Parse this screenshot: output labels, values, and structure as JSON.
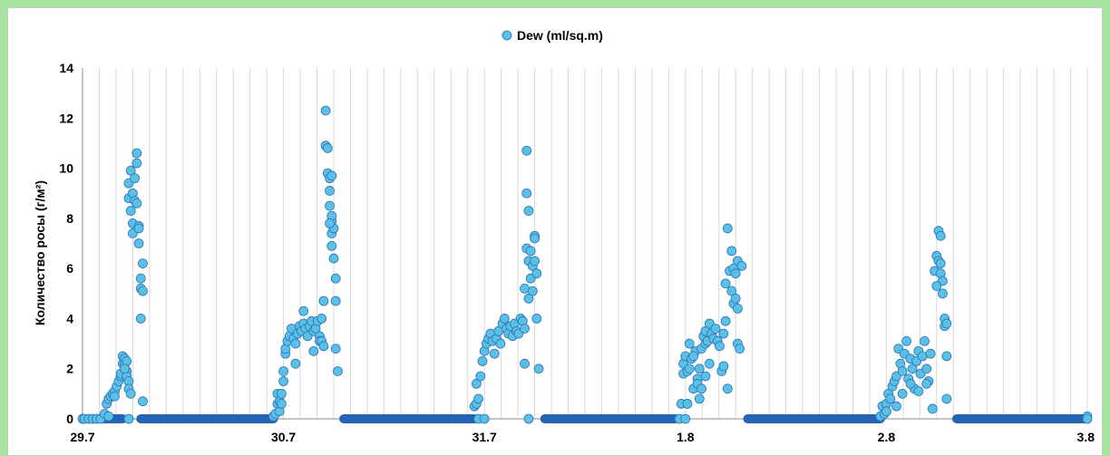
{
  "chart_data": {
    "type": "scatter",
    "title": "",
    "xlabel": "",
    "ylabel": "Количество росы (г/м²)",
    "ylim": [
      0,
      14
    ],
    "yticks": [
      "0",
      "2",
      "4",
      "6",
      "8",
      "10",
      "12",
      "14"
    ],
    "xlim": [
      0,
      5
    ],
    "xticks": [
      {
        "value": 0,
        "label": "29.7"
      },
      {
        "value": 1,
        "label": "30.7"
      },
      {
        "value": 2,
        "label": "31.7"
      },
      {
        "value": 3,
        "label": "1.8"
      },
      {
        "value": 4,
        "label": "2.8"
      },
      {
        "value": 5,
        "label": "3.8"
      }
    ],
    "grid": {
      "vertical_minor": true,
      "minor_per_day": 12
    },
    "legend": {
      "position": "top-center"
    },
    "colors": {
      "marker_fill": "#5bc0e6",
      "marker_stroke": "#2c72b8",
      "zero_band": "#2563b5"
    },
    "series": [
      {
        "name": "Dew (ml/sq.m)",
        "zero_segments": [
          [
            0.0,
            0.2
          ],
          [
            0.29,
            0.95
          ],
          [
            1.3,
            1.95
          ],
          [
            2.3,
            2.95
          ],
          [
            3.31,
            3.97
          ],
          [
            4.35,
            5.0
          ]
        ],
        "points": [
          [
            0.0,
            0
          ],
          [
            0.01,
            0
          ],
          [
            0.03,
            0
          ],
          [
            0.05,
            0
          ],
          [
            0.07,
            0
          ],
          [
            0.09,
            0
          ],
          [
            0.11,
            0.2
          ],
          [
            0.12,
            0.6
          ],
          [
            0.13,
            0.8
          ],
          [
            0.13,
            0.1
          ],
          [
            0.14,
            0.9
          ],
          [
            0.15,
            1.0
          ],
          [
            0.16,
            1.1
          ],
          [
            0.16,
            0.9
          ],
          [
            0.17,
            1.3
          ],
          [
            0.18,
            1.5
          ],
          [
            0.19,
            1.7
          ],
          [
            0.19,
            1.8
          ],
          [
            0.2,
            2.2
          ],
          [
            0.2,
            2.5
          ],
          [
            0.21,
            2.4
          ],
          [
            0.21,
            2.2
          ],
          [
            0.22,
            1.9
          ],
          [
            0.22,
            1.7
          ],
          [
            0.23,
            1.5
          ],
          [
            0.23,
            1.2
          ],
          [
            0.24,
            1.0
          ],
          [
            0.22,
            2.3
          ],
          [
            0.21,
            2.0
          ],
          [
            0.23,
            0
          ],
          [
            0.23,
            8.8
          ],
          [
            0.23,
            9.4
          ],
          [
            0.24,
            9.9
          ],
          [
            0.24,
            8.3
          ],
          [
            0.25,
            9.0
          ],
          [
            0.25,
            7.8
          ],
          [
            0.25,
            7.4
          ],
          [
            0.26,
            8.7
          ],
          [
            0.26,
            9.6
          ],
          [
            0.27,
            10.2
          ],
          [
            0.27,
            10.6
          ],
          [
            0.27,
            8.6
          ],
          [
            0.28,
            7.7
          ],
          [
            0.28,
            7.6
          ],
          [
            0.28,
            7.0
          ],
          [
            0.29,
            5.6
          ],
          [
            0.29,
            5.2
          ],
          [
            0.3,
            5.1
          ],
          [
            0.29,
            4.0
          ],
          [
            0.3,
            6.2
          ],
          [
            0.3,
            0.7
          ],
          [
            0.95,
            0.1
          ],
          [
            0.96,
            0.2
          ],
          [
            0.97,
            0.6
          ],
          [
            0.97,
            1.0
          ],
          [
            0.98,
            0.3
          ],
          [
            0.98,
            0.7
          ],
          [
            0.99,
            1.0
          ],
          [
            0.99,
            0.6
          ],
          [
            1.0,
            1.5
          ],
          [
            1.0,
            1.9
          ],
          [
            1.01,
            2.6
          ],
          [
            1.01,
            2.8
          ],
          [
            1.02,
            3.1
          ],
          [
            1.03,
            3.3
          ],
          [
            1.04,
            3.6
          ],
          [
            1.05,
            3.2
          ],
          [
            1.06,
            3.0
          ],
          [
            1.06,
            2.2
          ],
          [
            1.07,
            3.4
          ],
          [
            1.08,
            3.7
          ],
          [
            1.09,
            3.5
          ],
          [
            1.1,
            3.8
          ],
          [
            1.1,
            4.3
          ],
          [
            1.11,
            3.6
          ],
          [
            1.12,
            3.3
          ],
          [
            1.13,
            3.7
          ],
          [
            1.14,
            3.9
          ],
          [
            1.15,
            3.5
          ],
          [
            1.15,
            2.7
          ],
          [
            1.16,
            3.6
          ],
          [
            1.17,
            3.9
          ],
          [
            1.18,
            3.3
          ],
          [
            1.18,
            3.1
          ],
          [
            1.19,
            4.0
          ],
          [
            1.19,
            3.1
          ],
          [
            1.2,
            2.9
          ],
          [
            1.2,
            4.7
          ],
          [
            1.21,
            12.3
          ],
          [
            1.21,
            10.9
          ],
          [
            1.22,
            10.8
          ],
          [
            1.22,
            9.8
          ],
          [
            1.23,
            9.6
          ],
          [
            1.23,
            9.1
          ],
          [
            1.23,
            8.5
          ],
          [
            1.24,
            7.9
          ],
          [
            1.24,
            8.1
          ],
          [
            1.24,
            7.4
          ],
          [
            1.24,
            6.9
          ],
          [
            1.25,
            7.6
          ],
          [
            1.25,
            6.4
          ],
          [
            1.26,
            5.6
          ],
          [
            1.26,
            4.7
          ],
          [
            1.26,
            2.8
          ],
          [
            1.27,
            1.9
          ],
          [
            1.24,
            9.7
          ],
          [
            1.23,
            7.8
          ],
          [
            1.95,
            0.5
          ],
          [
            1.96,
            0.6
          ],
          [
            1.96,
            1.4
          ],
          [
            1.97,
            0.8
          ],
          [
            1.97,
            0
          ],
          [
            1.98,
            1.7
          ],
          [
            1.99,
            2.3
          ],
          [
            2.0,
            2.7
          ],
          [
            2.01,
            3.0
          ],
          [
            2.02,
            3.2
          ],
          [
            2.03,
            3.4
          ],
          [
            2.04,
            3.1
          ],
          [
            2.05,
            2.6
          ],
          [
            2.06,
            3.2
          ],
          [
            2.07,
            3.5
          ],
          [
            2.08,
            3.0
          ],
          [
            2.09,
            3.8
          ],
          [
            2.1,
            4.0
          ],
          [
            2.11,
            3.6
          ],
          [
            2.12,
            3.4
          ],
          [
            2.13,
            3.7
          ],
          [
            2.14,
            3.3
          ],
          [
            2.15,
            3.8
          ],
          [
            2.16,
            3.5
          ],
          [
            2.17,
            3.4
          ],
          [
            2.18,
            4.0
          ],
          [
            2.19,
            3.9
          ],
          [
            2.2,
            3.6
          ],
          [
            2.2,
            5.2
          ],
          [
            2.21,
            6.8
          ],
          [
            2.21,
            10.7
          ],
          [
            2.21,
            9.0
          ],
          [
            2.22,
            8.3
          ],
          [
            2.22,
            6.3
          ],
          [
            2.22,
            4.8
          ],
          [
            2.23,
            5.6
          ],
          [
            2.23,
            6.7
          ],
          [
            2.24,
            6.1
          ],
          [
            2.24,
            5.1
          ],
          [
            2.25,
            7.3
          ],
          [
            2.25,
            7.2
          ],
          [
            2.25,
            6.3
          ],
          [
            2.26,
            5.8
          ],
          [
            2.26,
            4.0
          ],
          [
            2.27,
            2.0
          ],
          [
            2.2,
            2.2
          ],
          [
            2.22,
            0
          ],
          [
            2.0,
            0
          ],
          [
            2.97,
            0
          ],
          [
            2.98,
            0.6
          ],
          [
            2.99,
            1.8
          ],
          [
            2.99,
            2.2
          ],
          [
            3.0,
            2.5
          ],
          [
            3.01,
            1.9
          ],
          [
            3.01,
            0.6
          ],
          [
            3.02,
            3.0
          ],
          [
            3.03,
            2.4
          ],
          [
            3.04,
            1.2
          ],
          [
            3.05,
            2.7
          ],
          [
            3.06,
            1.6
          ],
          [
            3.07,
            2.0
          ],
          [
            3.07,
            0.8
          ],
          [
            3.08,
            2.8
          ],
          [
            3.09,
            3.3
          ],
          [
            3.1,
            3.0
          ],
          [
            3.1,
            3.5
          ],
          [
            3.11,
            3.1
          ],
          [
            3.12,
            3.8
          ],
          [
            3.13,
            3.4
          ],
          [
            3.14,
            3.2
          ],
          [
            3.15,
            3.6
          ],
          [
            3.16,
            3.1
          ],
          [
            3.17,
            2.9
          ],
          [
            3.18,
            1.9
          ],
          [
            3.19,
            2.1
          ],
          [
            3.19,
            3.4
          ],
          [
            3.2,
            3.9
          ],
          [
            3.2,
            5.4
          ],
          [
            3.21,
            7.6
          ],
          [
            3.21,
            1.2
          ],
          [
            3.22,
            5.9
          ],
          [
            3.23,
            6.7
          ],
          [
            3.23,
            5.1
          ],
          [
            3.24,
            6.0
          ],
          [
            3.24,
            4.6
          ],
          [
            3.25,
            5.8
          ],
          [
            3.25,
            4.8
          ],
          [
            3.26,
            6.3
          ],
          [
            3.26,
            4.4
          ],
          [
            3.26,
            3.0
          ],
          [
            3.27,
            2.8
          ],
          [
            3.28,
            6.1
          ],
          [
            3.02,
            2.0
          ],
          [
            3.04,
            2.5
          ],
          [
            3.06,
            1.4
          ],
          [
            3.08,
            1.2
          ],
          [
            3.1,
            1.7
          ],
          [
            3.12,
            2.2
          ],
          [
            3.0,
            0
          ],
          [
            3.97,
            0.1
          ],
          [
            3.98,
            0.5
          ],
          [
            3.99,
            0.2
          ],
          [
            4.0,
            0.6
          ],
          [
            4.0,
            0.3
          ],
          [
            4.01,
            1.0
          ],
          [
            4.02,
            0.8
          ],
          [
            4.03,
            1.3
          ],
          [
            4.04,
            1.5
          ],
          [
            4.05,
            1.7
          ],
          [
            4.06,
            2.8
          ],
          [
            4.07,
            2.2
          ],
          [
            4.08,
            1.9
          ],
          [
            4.09,
            2.6
          ],
          [
            4.1,
            3.1
          ],
          [
            4.11,
            1.6
          ],
          [
            4.12,
            2.4
          ],
          [
            4.13,
            2.0
          ],
          [
            4.14,
            1.2
          ],
          [
            4.15,
            2.3
          ],
          [
            4.16,
            2.7
          ],
          [
            4.17,
            1.8
          ],
          [
            4.18,
            2.5
          ],
          [
            4.19,
            3.1
          ],
          [
            4.2,
            2.0
          ],
          [
            4.21,
            1.5
          ],
          [
            4.22,
            2.6
          ],
          [
            4.23,
            0.4
          ],
          [
            4.24,
            5.9
          ],
          [
            4.25,
            6.5
          ],
          [
            4.26,
            7.5
          ],
          [
            4.26,
            6.3
          ],
          [
            4.27,
            7.3
          ],
          [
            4.27,
            5.8
          ],
          [
            4.28,
            5.5
          ],
          [
            4.28,
            5.0
          ],
          [
            4.29,
            4.0
          ],
          [
            4.29,
            3.7
          ],
          [
            4.3,
            2.5
          ],
          [
            4.3,
            0.8
          ],
          [
            4.3,
            3.8
          ],
          [
            4.25,
            5.3
          ],
          [
            4.27,
            6.2
          ],
          [
            4.05,
            0.5
          ],
          [
            4.08,
            1.0
          ],
          [
            4.12,
            1.4
          ],
          [
            4.16,
            1.1
          ],
          [
            4.2,
            1.4
          ],
          [
            5.0,
            0.1
          ],
          [
            5.0,
            0
          ]
        ]
      }
    ]
  }
}
